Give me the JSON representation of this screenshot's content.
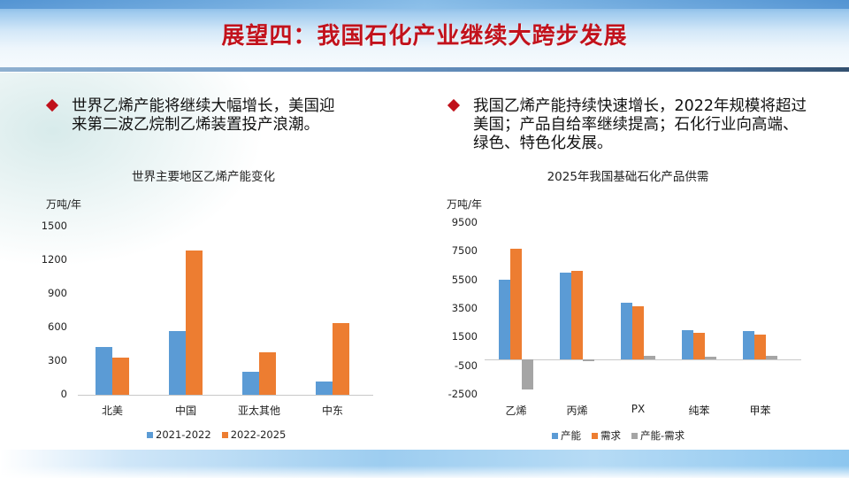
{
  "header": {
    "title": "展望四：我国石化产业继续大跨步发展"
  },
  "left": {
    "bullet_line1": "世界乙烯产能将继续大幅增长，美国迎",
    "bullet_line2": "来第二波乙烷制乙烯装置投产浪潮。"
  },
  "right": {
    "bullet_line1": "我国乙烯产能持续快速增长，2022年规模将超过",
    "bullet_line2": "美国；产品自给率继续提高；石化行业向高端、",
    "bullet_line3": "绿色、特色化发展。"
  },
  "colors": {
    "blue": "#5b9bd5",
    "orange": "#ed7d31",
    "gray": "#a5a5a5",
    "accent_red": "#c2121c"
  },
  "chart_data": [
    {
      "type": "bar",
      "title": "世界主要地区乙烯产能变化",
      "ylabel": "万吨/年",
      "xlabel": "",
      "categories": [
        "北美",
        "中国",
        "亚太其他",
        "中东"
      ],
      "yticks": [
        "1500",
        "1200",
        "900",
        "600",
        "300",
        "0"
      ],
      "ylim": [
        0,
        1500
      ],
      "series": [
        {
          "name": "2021-2022",
          "color": "#5b9bd5",
          "values": [
            430,
            570,
            205,
            120
          ]
        },
        {
          "name": "2022-2025",
          "color": "#ed7d31",
          "values": [
            330,
            1285,
            380,
            640
          ]
        }
      ],
      "grid": false,
      "legend_position": "bottom"
    },
    {
      "type": "bar",
      "title": "2025年我国基础石化产品供需",
      "ylabel": "万吨/年",
      "xlabel": "",
      "categories": [
        "乙烯",
        "丙烯",
        "PX",
        "纯苯",
        "甲苯"
      ],
      "yticks": [
        "9500",
        "7500",
        "5500",
        "3500",
        "1500",
        "-500",
        "-2500"
      ],
      "ylim": [
        -2500,
        9500
      ],
      "series": [
        {
          "name": "产能",
          "color": "#5b9bd5",
          "values": [
            5570,
            6060,
            3960,
            2040,
            1980
          ]
        },
        {
          "name": "需求",
          "color": "#ed7d31",
          "values": [
            7730,
            6190,
            3710,
            1860,
            1730
          ]
        },
        {
          "name": "产能-需求",
          "color": "#a5a5a5",
          "values": [
            -2160,
            -130,
            250,
            180,
            250
          ]
        }
      ],
      "grid": false,
      "legend_position": "bottom"
    }
  ]
}
